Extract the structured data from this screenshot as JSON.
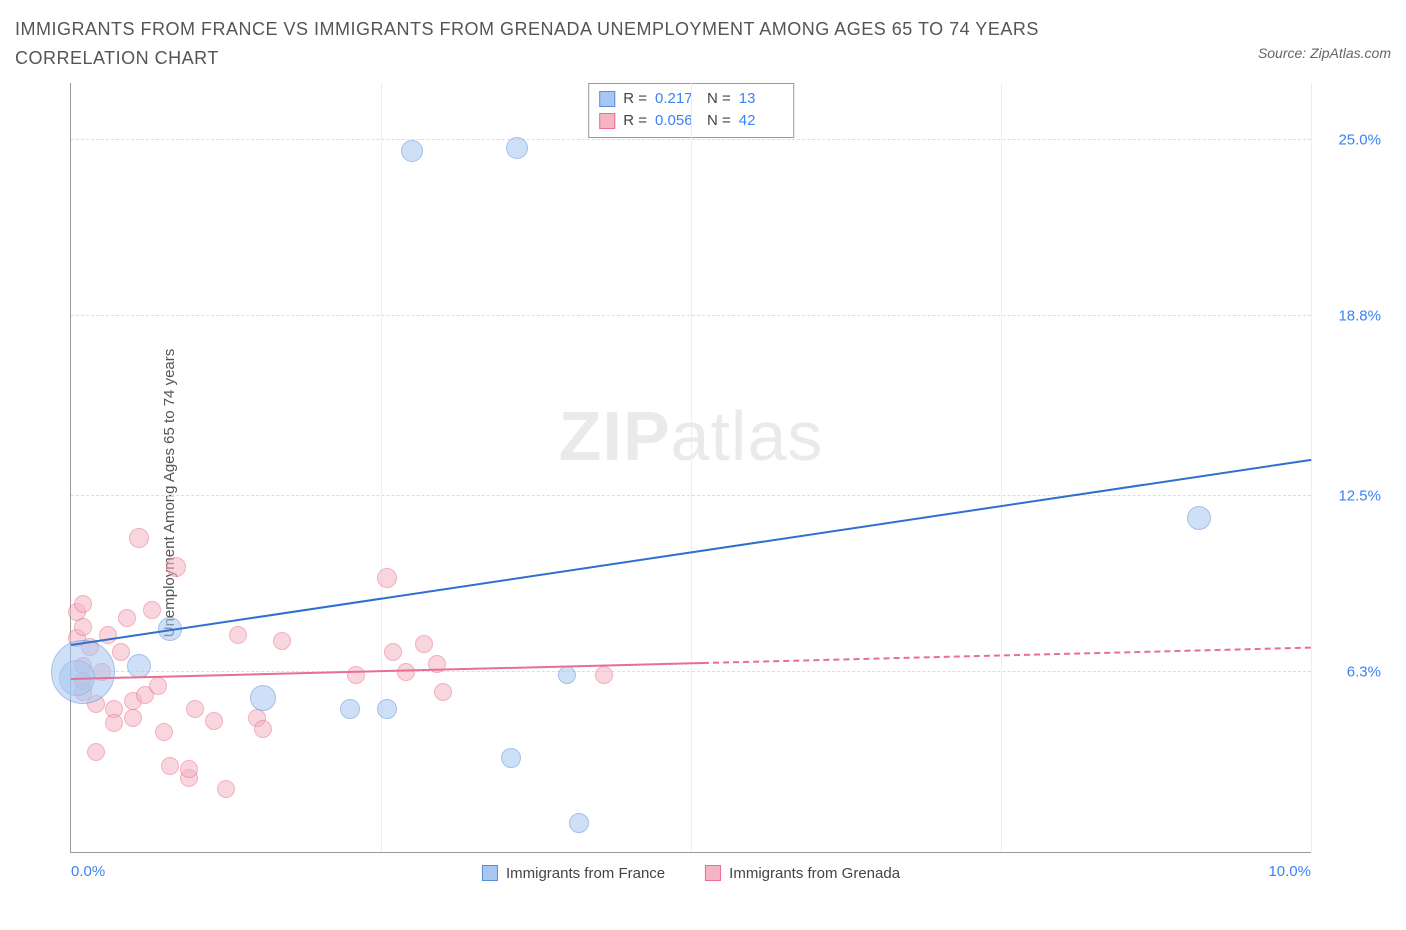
{
  "title": "IMMIGRANTS FROM FRANCE VS IMMIGRANTS FROM GRENADA UNEMPLOYMENT AMONG AGES 65 TO 74 YEARS CORRELATION CHART",
  "source": "Source: ZipAtlas.com",
  "y_axis_label": "Unemployment Among Ages 65 to 74 years",
  "watermark_a": "ZIP",
  "watermark_b": "atlas",
  "chart": {
    "type": "scatter",
    "xlim": [
      0,
      10
    ],
    "ylim": [
      0,
      27
    ],
    "x_ticks": [
      {
        "pos": 0.0,
        "label": "0.0%"
      },
      {
        "pos": 10.0,
        "label": "10.0%"
      }
    ],
    "x_grid": [
      2.5,
      5.0,
      7.5,
      10.0
    ],
    "y_ticks": [
      {
        "pos": 6.3,
        "label": "6.3%"
      },
      {
        "pos": 12.5,
        "label": "12.5%"
      },
      {
        "pos": 18.8,
        "label": "18.8%"
      },
      {
        "pos": 25.0,
        "label": "25.0%"
      }
    ],
    "background_color": "#ffffff",
    "grid_color": "#dddddd",
    "axis_color": "#999999"
  },
  "series": {
    "france": {
      "label": "Immigrants from France",
      "fill": "#a7c7f2",
      "stroke": "#5b8dd6",
      "fill_opacity": 0.55,
      "R": "0.217",
      "N": "13",
      "trend": {
        "x1": 0,
        "y1": 7.3,
        "x2": 10,
        "y2": 13.8,
        "solid_until": 10,
        "color": "#2f6fd0"
      },
      "points": [
        {
          "x": 0.05,
          "y": 6.1,
          "r": 18
        },
        {
          "x": 0.1,
          "y": 6.3,
          "r": 32
        },
        {
          "x": 0.55,
          "y": 6.5,
          "r": 12
        },
        {
          "x": 0.8,
          "y": 7.8,
          "r": 12
        },
        {
          "x": 1.55,
          "y": 5.4,
          "r": 13
        },
        {
          "x": 2.25,
          "y": 5.0,
          "r": 10
        },
        {
          "x": 2.55,
          "y": 5.0,
          "r": 10
        },
        {
          "x": 2.75,
          "y": 24.6,
          "r": 11
        },
        {
          "x": 3.55,
          "y": 3.3,
          "r": 10
        },
        {
          "x": 3.6,
          "y": 24.7,
          "r": 11
        },
        {
          "x": 4.0,
          "y": 6.2,
          "r": 9
        },
        {
          "x": 4.1,
          "y": 1.0,
          "r": 10
        },
        {
          "x": 9.1,
          "y": 11.7,
          "r": 12
        }
      ]
    },
    "grenada": {
      "label": "Immigrants from Grenada",
      "fill": "#f5b4c4",
      "stroke": "#e76f91",
      "fill_opacity": 0.55,
      "R": "0.056",
      "N": "42",
      "trend": {
        "x1": 0,
        "y1": 6.1,
        "x2": 10,
        "y2": 7.2,
        "solid_until": 5.1,
        "color": "#e76f91"
      },
      "points": [
        {
          "x": 0.05,
          "y": 8.4,
          "r": 9
        },
        {
          "x": 0.05,
          "y": 7.5,
          "r": 9
        },
        {
          "x": 0.1,
          "y": 7.9,
          "r": 9
        },
        {
          "x": 0.1,
          "y": 8.7,
          "r": 9
        },
        {
          "x": 0.1,
          "y": 6.5,
          "r": 9
        },
        {
          "x": 0.1,
          "y": 6.0,
          "r": 9
        },
        {
          "x": 0.1,
          "y": 5.6,
          "r": 9
        },
        {
          "x": 0.15,
          "y": 7.2,
          "r": 9
        },
        {
          "x": 0.2,
          "y": 5.2,
          "r": 9
        },
        {
          "x": 0.2,
          "y": 3.5,
          "r": 9
        },
        {
          "x": 0.25,
          "y": 6.3,
          "r": 9
        },
        {
          "x": 0.3,
          "y": 7.6,
          "r": 9
        },
        {
          "x": 0.35,
          "y": 5.0,
          "r": 9
        },
        {
          "x": 0.35,
          "y": 4.5,
          "r": 9
        },
        {
          "x": 0.4,
          "y": 7.0,
          "r": 9
        },
        {
          "x": 0.45,
          "y": 8.2,
          "r": 9
        },
        {
          "x": 0.5,
          "y": 5.3,
          "r": 9
        },
        {
          "x": 0.5,
          "y": 4.7,
          "r": 9
        },
        {
          "x": 0.55,
          "y": 11.0,
          "r": 10
        },
        {
          "x": 0.6,
          "y": 5.5,
          "r": 9
        },
        {
          "x": 0.65,
          "y": 8.5,
          "r": 9
        },
        {
          "x": 0.7,
          "y": 5.8,
          "r": 9
        },
        {
          "x": 0.75,
          "y": 4.2,
          "r": 9
        },
        {
          "x": 0.8,
          "y": 3.0,
          "r": 9
        },
        {
          "x": 0.85,
          "y": 10.0,
          "r": 10
        },
        {
          "x": 0.95,
          "y": 2.6,
          "r": 9
        },
        {
          "x": 0.95,
          "y": 2.9,
          "r": 9
        },
        {
          "x": 1.0,
          "y": 5.0,
          "r": 9
        },
        {
          "x": 1.15,
          "y": 4.6,
          "r": 9
        },
        {
          "x": 1.25,
          "y": 2.2,
          "r": 9
        },
        {
          "x": 1.35,
          "y": 7.6,
          "r": 9
        },
        {
          "x": 1.5,
          "y": 4.7,
          "r": 9
        },
        {
          "x": 1.55,
          "y": 4.3,
          "r": 9
        },
        {
          "x": 1.7,
          "y": 7.4,
          "r": 9
        },
        {
          "x": 2.3,
          "y": 6.2,
          "r": 9
        },
        {
          "x": 2.55,
          "y": 9.6,
          "r": 10
        },
        {
          "x": 2.6,
          "y": 7.0,
          "r": 9
        },
        {
          "x": 2.7,
          "y": 6.3,
          "r": 9
        },
        {
          "x": 2.85,
          "y": 7.3,
          "r": 9
        },
        {
          "x": 2.95,
          "y": 6.6,
          "r": 9
        },
        {
          "x": 3.0,
          "y": 5.6,
          "r": 9
        },
        {
          "x": 4.3,
          "y": 6.2,
          "r": 9
        }
      ]
    }
  },
  "legend_stats_labels": {
    "R": "R =",
    "N": "N ="
  }
}
